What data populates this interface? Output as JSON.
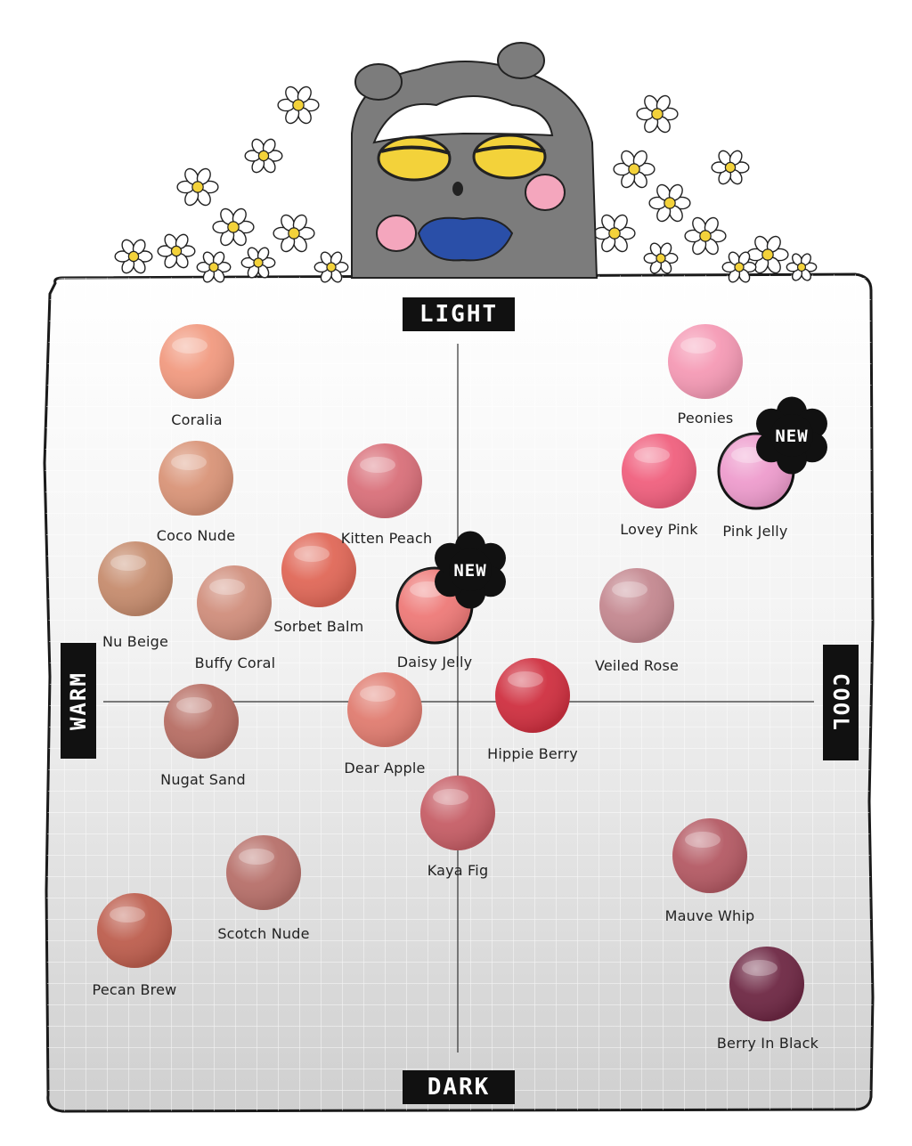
{
  "axes": {
    "top": "LIGHT",
    "bottom": "DARK",
    "left": "WARM",
    "right": "COOL"
  },
  "badge_text": "NEW",
  "mascot_icon": "gray-fluffy-cat-mascot",
  "flower_icon": "white-daisy-icon",
  "swatches": [
    {
      "name": "Coralia",
      "color": "#f19a80",
      "new": false
    },
    {
      "name": "Peonies",
      "color": "#f59ab5",
      "new": false
    },
    {
      "name": "Coco Nude",
      "color": "#d99478",
      "new": false
    },
    {
      "name": "Kitten Peach",
      "color": "#d9707a",
      "new": false
    },
    {
      "name": "Lovey Pink",
      "color": "#f0607e",
      "new": false
    },
    {
      "name": "Pink Jelly",
      "color": "#ee9ccd",
      "new": true
    },
    {
      "name": "Nu Beige",
      "color": "#c68c6e",
      "new": false
    },
    {
      "name": "Buffy Coral",
      "color": "#d08e7c",
      "new": false
    },
    {
      "name": "Sorbet Balm",
      "color": "#e06858",
      "new": false
    },
    {
      "name": "Daisy Jelly",
      "color": "#ee7a78",
      "new": true
    },
    {
      "name": "Veiled Rose",
      "color": "#c48890",
      "new": false
    },
    {
      "name": "Nugat Sand",
      "color": "#b76e64",
      "new": false
    },
    {
      "name": "Dear Apple",
      "color": "#e07c70",
      "new": false
    },
    {
      "name": "Hippie Berry",
      "color": "#cf3040",
      "new": false
    },
    {
      "name": "Kaya Fig",
      "color": "#c65e66",
      "new": false
    },
    {
      "name": "Scotch Nude",
      "color": "#b7706a",
      "new": false
    },
    {
      "name": "Mauve Whip",
      "color": "#b45a64",
      "new": false
    },
    {
      "name": "Pecan Brew",
      "color": "#bd5e4e",
      "new": false
    },
    {
      "name": "Berry In Black",
      "color": "#6e2844",
      "new": false
    }
  ]
}
